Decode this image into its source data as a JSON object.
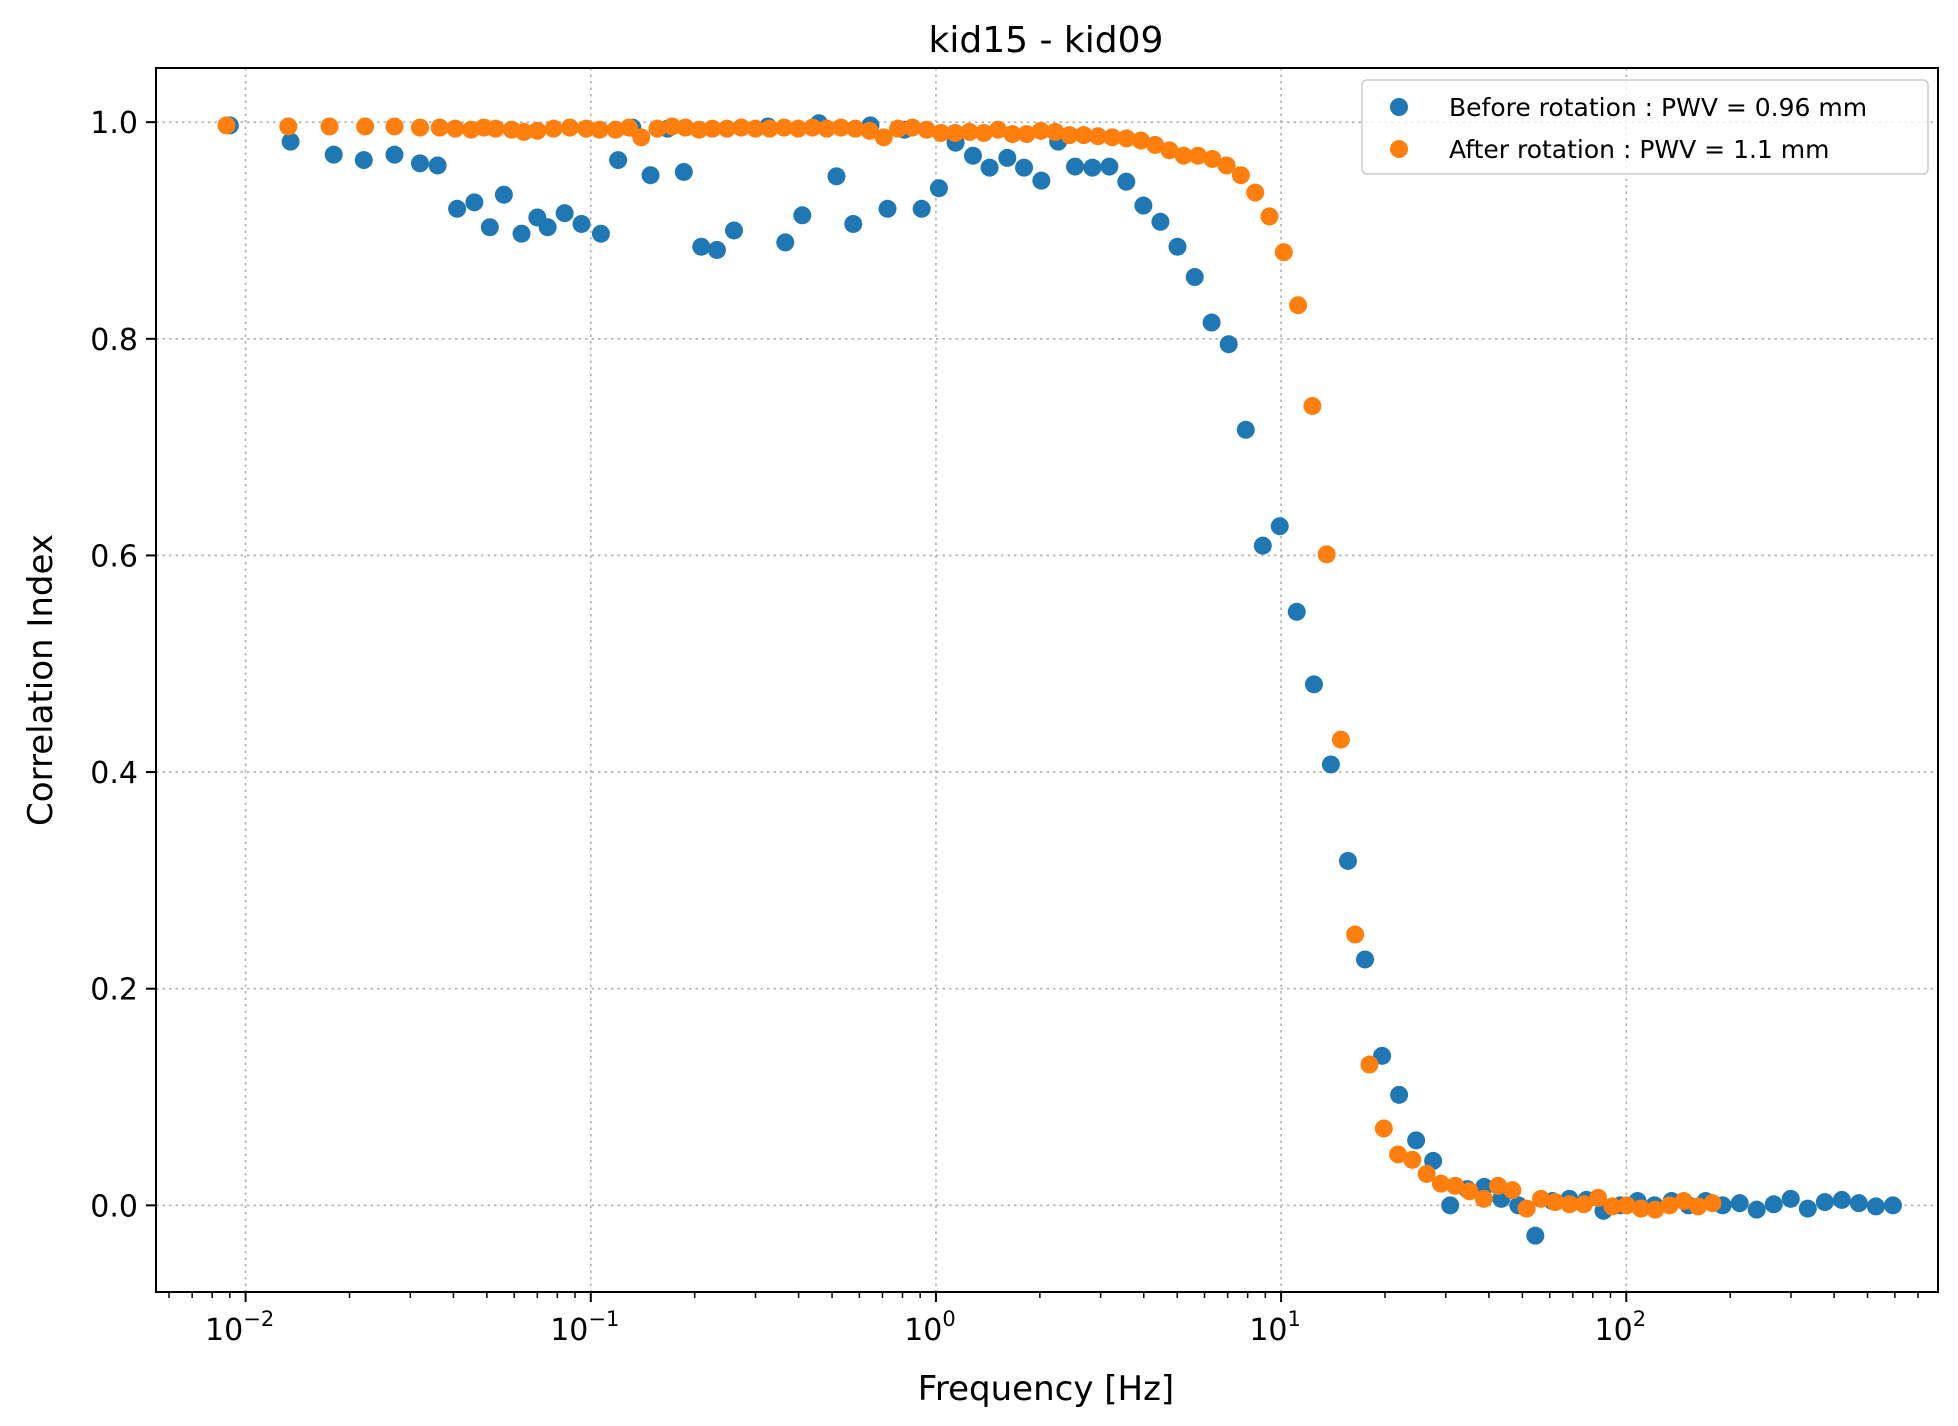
{
  "chart_data": {
    "type": "scatter",
    "title": "kid15 - kid09",
    "xlabel": "Frequency [Hz]",
    "ylabel": "Correlation Index",
    "xscale": "log",
    "xlim": [
      0.0055,
      800
    ],
    "ylim": [
      -0.08,
      1.05
    ],
    "grid": true,
    "legend_position": "top-right",
    "x_ticks": [
      {
        "value": 0.01,
        "base": "10",
        "exp": "−2"
      },
      {
        "value": 0.1,
        "base": "10",
        "exp": "−1"
      },
      {
        "value": 1,
        "base": "10",
        "exp": "0"
      },
      {
        "value": 10,
        "base": "10",
        "exp": "1"
      },
      {
        "value": 100,
        "base": "10",
        "exp": "2"
      }
    ],
    "y_ticks": [
      {
        "value": 0.0,
        "label": "0.0"
      },
      {
        "value": 0.2,
        "label": "0.2"
      },
      {
        "value": 0.4,
        "label": "0.4"
      },
      {
        "value": 0.6,
        "label": "0.6"
      },
      {
        "value": 0.8,
        "label": "0.8"
      },
      {
        "value": 1.0,
        "label": "1.0"
      }
    ],
    "series": [
      {
        "name": "Before rotation : PWV = 0.96 mm",
        "color": "#1f77b4",
        "points": [
          [
            0.009,
            0.997
          ],
          [
            0.0135,
            0.982
          ],
          [
            0.018,
            0.97
          ],
          [
            0.022,
            0.965
          ],
          [
            0.027,
            0.97
          ],
          [
            0.032,
            0.962
          ],
          [
            0.036,
            0.96
          ],
          [
            0.041,
            0.92
          ],
          [
            0.046,
            0.926
          ],
          [
            0.051,
            0.903
          ],
          [
            0.056,
            0.933
          ],
          [
            0.063,
            0.897
          ],
          [
            0.07,
            0.912
          ],
          [
            0.075,
            0.903
          ],
          [
            0.084,
            0.916
          ],
          [
            0.094,
            0.906
          ],
          [
            0.107,
            0.897
          ],
          [
            0.12,
            0.965
          ],
          [
            0.132,
            0.995
          ],
          [
            0.149,
            0.951
          ],
          [
            0.167,
            0.994
          ],
          [
            0.186,
            0.954
          ],
          [
            0.209,
            0.885
          ],
          [
            0.232,
            0.882
          ],
          [
            0.26,
            0.9
          ],
          [
            0.326,
            0.996
          ],
          [
            0.366,
            0.889
          ],
          [
            0.41,
            0.914
          ],
          [
            0.458,
            0.999
          ],
          [
            0.515,
            0.95
          ],
          [
            0.576,
            0.906
          ],
          [
            0.646,
            0.997
          ],
          [
            0.724,
            0.92
          ],
          [
            0.81,
            0.993
          ],
          [
            0.909,
            0.92
          ],
          [
            1.02,
            0.939
          ],
          [
            1.14,
            0.981
          ],
          [
            1.28,
            0.969
          ],
          [
            1.43,
            0.958
          ],
          [
            1.61,
            0.967
          ],
          [
            1.8,
            0.958
          ],
          [
            2.02,
            0.946
          ],
          [
            2.26,
            0.982
          ],
          [
            2.53,
            0.959
          ],
          [
            2.84,
            0.958
          ],
          [
            3.18,
            0.959
          ],
          [
            3.56,
            0.945
          ],
          [
            3.99,
            0.923
          ],
          [
            4.47,
            0.908
          ],
          [
            5.01,
            0.885
          ],
          [
            5.62,
            0.857
          ],
          [
            6.29,
            0.815
          ],
          [
            7.05,
            0.795
          ],
          [
            7.9,
            0.716
          ],
          [
            8.85,
            0.609
          ],
          [
            9.91,
            0.627
          ],
          [
            11.1,
            0.548
          ],
          [
            12.45,
            0.481
          ],
          [
            13.94,
            0.407
          ],
          [
            15.62,
            0.318
          ],
          [
            17.5,
            0.227
          ],
          [
            19.61,
            0.138
          ],
          [
            21.97,
            0.102
          ],
          [
            24.61,
            0.06
          ],
          [
            27.57,
            0.041
          ],
          [
            30.89,
            0.0
          ],
          [
            34.61,
            0.015
          ],
          [
            38.77,
            0.017
          ],
          [
            43.43,
            0.006
          ],
          [
            48.66,
            0.0
          ],
          [
            54.51,
            -0.028
          ],
          [
            61.07,
            0.004
          ],
          [
            68.42,
            0.006
          ],
          [
            76.65,
            0.005
          ],
          [
            85.87,
            -0.005
          ],
          [
            96.2,
            0.0
          ],
          [
            107.8,
            0.004
          ],
          [
            120.7,
            0.0
          ],
          [
            135.3,
            0.004
          ],
          [
            151.5,
            0.0
          ],
          [
            169.8,
            0.004
          ],
          [
            190.2,
            0.0
          ],
          [
            213.1,
            0.002
          ],
          [
            238.7,
            -0.004
          ],
          [
            267.4,
            0.001
          ],
          [
            299.6,
            0.006
          ],
          [
            335.6,
            -0.003
          ],
          [
            376.0,
            0.003
          ],
          [
            421.3,
            0.005
          ],
          [
            471.9,
            0.002
          ],
          [
            528.7,
            -0.001
          ],
          [
            592.3,
            0.0
          ]
        ]
      },
      {
        "name": "After rotation : PWV = 1.1 mm",
        "color": "#ff7f0e",
        "points": [
          [
            0.0088,
            0.997
          ],
          [
            0.0133,
            0.996
          ],
          [
            0.0175,
            0.996
          ],
          [
            0.0222,
            0.996
          ],
          [
            0.027,
            0.996
          ],
          [
            0.032,
            0.995
          ],
          [
            0.0365,
            0.995
          ],
          [
            0.0405,
            0.994
          ],
          [
            0.045,
            0.993
          ],
          [
            0.049,
            0.995
          ],
          [
            0.053,
            0.994
          ],
          [
            0.059,
            0.993
          ],
          [
            0.064,
            0.991
          ],
          [
            0.07,
            0.992
          ],
          [
            0.078,
            0.994
          ],
          [
            0.087,
            0.995
          ],
          [
            0.097,
            0.994
          ],
          [
            0.106,
            0.993
          ],
          [
            0.118,
            0.993
          ],
          [
            0.129,
            0.995
          ],
          [
            0.14,
            0.986
          ],
          [
            0.156,
            0.994
          ],
          [
            0.172,
            0.996
          ],
          [
            0.188,
            0.995
          ],
          [
            0.206,
            0.993
          ],
          [
            0.225,
            0.994
          ],
          [
            0.248,
            0.994
          ],
          [
            0.273,
            0.995
          ],
          [
            0.3,
            0.994
          ],
          [
            0.33,
            0.994
          ],
          [
            0.363,
            0.995
          ],
          [
            0.399,
            0.994
          ],
          [
            0.439,
            0.995
          ],
          [
            0.483,
            0.994
          ],
          [
            0.531,
            0.995
          ],
          [
            0.584,
            0.994
          ],
          [
            0.642,
            0.992
          ],
          [
            0.706,
            0.986
          ],
          [
            0.777,
            0.994
          ],
          [
            0.854,
            0.995
          ],
          [
            0.94,
            0.993
          ],
          [
            1.034,
            0.99
          ],
          [
            1.137,
            0.99
          ],
          [
            1.251,
            0.991
          ],
          [
            1.376,
            0.99
          ],
          [
            1.513,
            0.993
          ],
          [
            1.665,
            0.989
          ],
          [
            1.831,
            0.989
          ],
          [
            2.014,
            0.992
          ],
          [
            2.215,
            0.991
          ],
          [
            2.437,
            0.988
          ],
          [
            2.68,
            0.988
          ],
          [
            2.948,
            0.987
          ],
          [
            3.243,
            0.986
          ],
          [
            3.567,
            0.985
          ],
          [
            3.924,
            0.983
          ],
          [
            4.316,
            0.979
          ],
          [
            4.748,
            0.974
          ],
          [
            5.223,
            0.969
          ],
          [
            5.745,
            0.969
          ],
          [
            6.32,
            0.966
          ],
          [
            6.952,
            0.96
          ],
          [
            7.647,
            0.951
          ],
          [
            8.412,
            0.935
          ],
          [
            9.253,
            0.913
          ],
          [
            10.18,
            0.88
          ],
          [
            11.2,
            0.831
          ],
          [
            12.32,
            0.738
          ],
          [
            13.55,
            0.601
          ],
          [
            14.9,
            0.43
          ],
          [
            16.39,
            0.25
          ],
          [
            18.03,
            0.13
          ],
          [
            19.84,
            0.071
          ],
          [
            21.82,
            0.047
          ],
          [
            24.0,
            0.042
          ],
          [
            26.4,
            0.029
          ],
          [
            29.04,
            0.02
          ],
          [
            31.95,
            0.018
          ],
          [
            35.14,
            0.013
          ],
          [
            38.66,
            0.006
          ],
          [
            42.52,
            0.018
          ],
          [
            46.77,
            0.014
          ],
          [
            51.45,
            -0.003
          ],
          [
            56.6,
            0.006
          ],
          [
            62.26,
            0.003
          ],
          [
            68.48,
            0.001
          ],
          [
            75.33,
            0.001
          ],
          [
            82.87,
            0.007
          ],
          [
            91.15,
            -0.001
          ],
          [
            100.3,
            0.0
          ],
          [
            110.3,
            -0.003
          ],
          [
            121.3,
            -0.004
          ],
          [
            133.5,
            0.0
          ],
          [
            146.8,
            0.004
          ],
          [
            161.5,
            -0.001
          ],
          [
            177.7,
            0.002
          ]
        ]
      }
    ]
  }
}
